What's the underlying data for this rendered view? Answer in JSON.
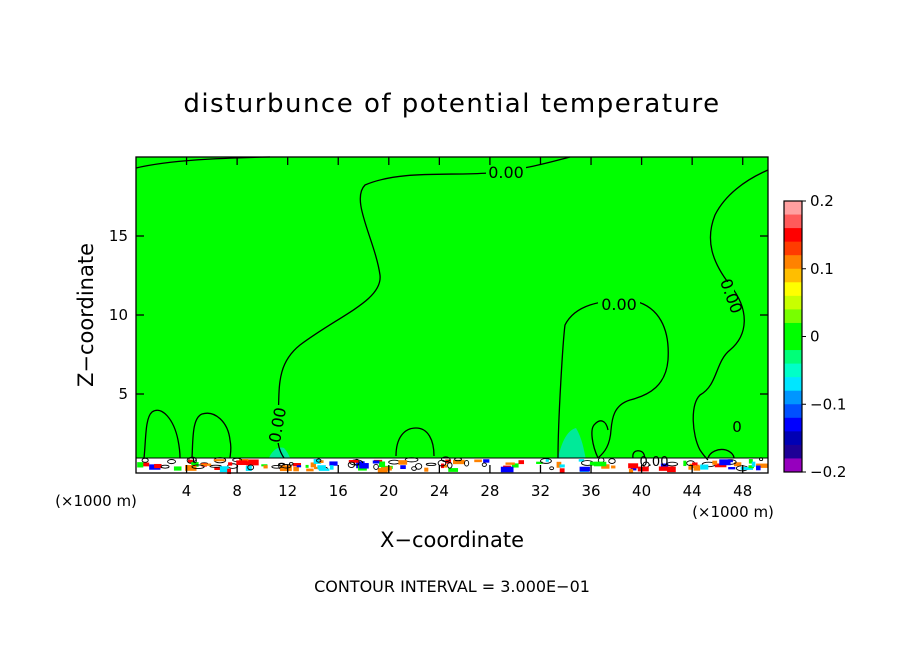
{
  "chart_data": {
    "type": "heatmap",
    "title": "disturbunce of potential temperature",
    "xlabel": "X−coordinate",
    "ylabel": "Z−coordinate",
    "x_unit_left": "(×1000 m)",
    "x_unit_right": "(×1000 m)",
    "xlim": [
      0,
      50
    ],
    "ylim": [
      0,
      20
    ],
    "x_ticks": [
      4,
      8,
      12,
      16,
      20,
      24,
      28,
      32,
      36,
      40,
      44,
      48
    ],
    "y_ticks": [
      5,
      10,
      15
    ],
    "footer": "CONTOUR INTERVAL = 3.000E−01",
    "contour_labels": [
      "0.00",
      "0.00",
      "0.00",
      "0.00",
      "0.00",
      "0"
    ],
    "colorbar": {
      "range": [
        -0.2,
        0.2
      ],
      "tick_labels": [
        "0.2",
        "0.1",
        "0",
        "−0.1",
        "−0.2"
      ],
      "tick_values": [
        0.2,
        0.1,
        0,
        -0.1,
        -0.2
      ],
      "colors_top_to_bottom": [
        "#ffa0a0",
        "#ff5a5a",
        "#ff0000",
        "#ff3c00",
        "#ff8200",
        "#ffbe00",
        "#ffff00",
        "#c8ff00",
        "#78ff00",
        "#00ff00",
        "#00ff00",
        "#00ff78",
        "#00ffc8",
        "#00e6ff",
        "#0096ff",
        "#0050ff",
        "#0000ff",
        "#0000b4",
        "#1e0096",
        "#9600be"
      ]
    },
    "background_value": 0,
    "field_color": "#00ff00"
  }
}
